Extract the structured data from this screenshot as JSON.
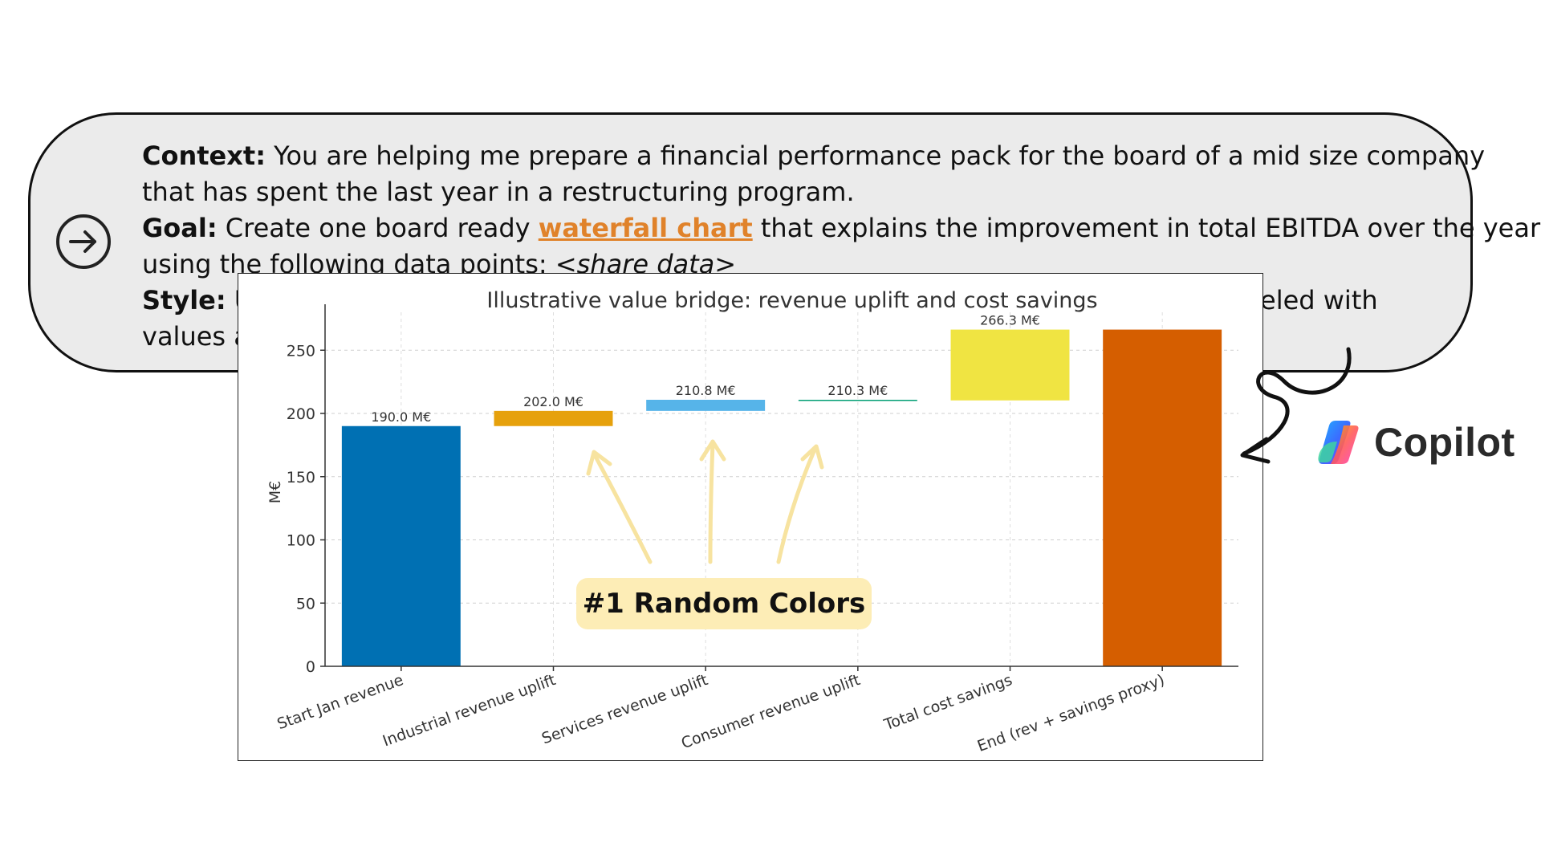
{
  "prompt": {
    "context_label": "Context:",
    "context_text_1": " You are helping me prepare a financial performance pack for the board of a mid size company",
    "context_text_2": "that has spent the last year in a restructuring program.",
    "goal_label": "Goal:",
    "goal_text_pre": " Create one board ready ",
    "goal_link": "waterfall chart",
    "goal_text_post": " that explains the improvement in total EBITDA over the year",
    "goal_text_2": "using the following data points: ",
    "goal_data_placeholder": "<share data>",
    "style_label": "Style:",
    "style_text_visible": " U",
    "style_text_right": "eled with",
    "values_text_visible": "values a"
  },
  "callout": {
    "label": "#1 Random Colors"
  },
  "brand": {
    "name": "Copilot"
  },
  "colors": {
    "accent_link": "#e0822a",
    "callout_bg": "#fdedb6",
    "callout_arrow": "#f7e3a0"
  },
  "chart_data": {
    "type": "bar",
    "subtype": "waterfall",
    "title": "Illustrative value bridge: revenue uplift and cost savings",
    "ylabel": "M€",
    "xlabel": "",
    "ylim": [
      0,
      280
    ],
    "yticks": [
      0,
      50,
      100,
      150,
      200,
      250
    ],
    "grid": true,
    "categories": [
      "Start Jan revenue",
      "Industrial revenue uplift",
      "Services revenue uplift",
      "Consumer revenue uplift",
      "Total cost savings",
      "End (rev + savings proxy)"
    ],
    "bars": [
      {
        "base": 0,
        "top": 190.0,
        "label": "190.0 M€",
        "color": "#0070b3"
      },
      {
        "base": 190.0,
        "top": 202.0,
        "label": "202.0 M€",
        "color": "#e6a10c"
      },
      {
        "base": 202.0,
        "top": 210.8,
        "label": "210.8 M€",
        "color": "#56b4e9"
      },
      {
        "base": 210.8,
        "top": 210.3,
        "label": "210.3 M€",
        "color": "#009e73"
      },
      {
        "base": 210.3,
        "top": 266.3,
        "label": "266.3 M€",
        "color": "#f0e442"
      },
      {
        "base": 0,
        "top": 266.3,
        "label": "",
        "color": "#d55e00"
      }
    ]
  }
}
